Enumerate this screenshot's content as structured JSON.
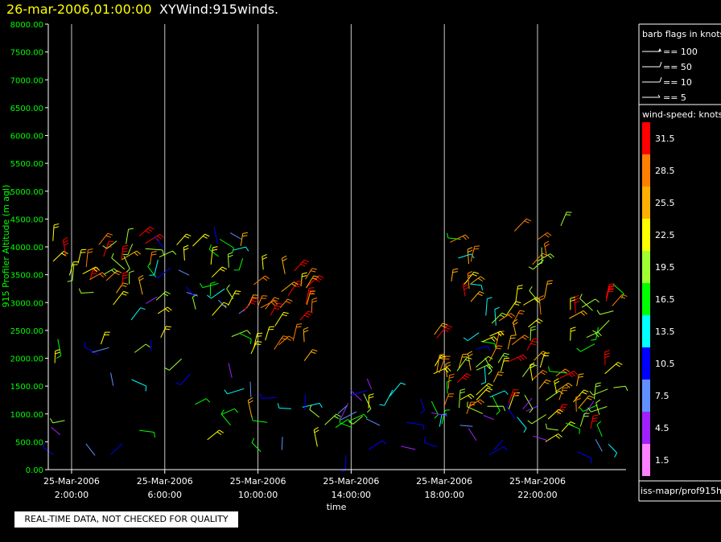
{
  "header": {
    "timestamp": "26-mar-2006,01:00:00",
    "title": "XYWind:915winds."
  },
  "notice": "REAL-TIME DATA, NOT CHECKED FOR QUALITY",
  "footer_path": "iss-mapr/prof915h",
  "chart_data": {
    "type": "scatter",
    "subtype": "wind-barb time-height plot",
    "xlabel": "time",
    "ylabel": "915 Profiler Altitude (m agl)",
    "ylim": [
      0,
      8000
    ],
    "yticks": [
      "0.00",
      "500.00",
      "1000.00",
      "1500.00",
      "2000.00",
      "2500.00",
      "3000.00",
      "3500.00",
      "4000.00",
      "4500.00",
      "5000.00",
      "5500.00",
      "6000.00",
      "6500.00",
      "7000.00",
      "7500.00",
      "8000.00"
    ],
    "x_range_hours": [
      1,
      25.8
    ],
    "xticks": [
      {
        "hour": 2,
        "date": "25-Mar-2006",
        "time": "2:00:00"
      },
      {
        "hour": 6,
        "date": "25-Mar-2006",
        "time": "6:00:00"
      },
      {
        "hour": 10,
        "date": "25-Mar-2006",
        "time": "10:00:00"
      },
      {
        "hour": 14,
        "date": "25-Mar-2006",
        "time": "14:00:00"
      },
      {
        "hour": 18,
        "date": "25-Mar-2006",
        "time": "18:00:00"
      },
      {
        "hour": 22,
        "date": "25-Mar-2006",
        "time": "22:00:00"
      }
    ],
    "grid": "vertical",
    "barb_legend": {
      "title": "barb flags in knots",
      "items": [
        "== 100",
        "== 50",
        "== 10",
        "== 5"
      ]
    },
    "speed_legend": {
      "title": "wind-speed: knots",
      "bins": [
        {
          "label": "31.5",
          "color": "#ff0000"
        },
        {
          "label": "28.5",
          "color": "#ff8000"
        },
        {
          "label": "25.5",
          "color": "#ffb000"
        },
        {
          "label": "22.5",
          "color": "#ffff00"
        },
        {
          "label": "19.5",
          "color": "#a0ff30"
        },
        {
          "label": "16.5",
          "color": "#00ff00"
        },
        {
          "label": "13.5",
          "color": "#00ffff"
        },
        {
          "label": "10.5",
          "color": "#0000ff"
        },
        {
          "label": "7.5",
          "color": "#6090ff"
        },
        {
          "label": "4.5",
          "color": "#a020ff"
        },
        {
          "label": "1.5",
          "color": "#ff80ff"
        }
      ]
    },
    "clusters": [
      {
        "hour_min": 1.2,
        "hour_max": 5.5,
        "alt_min": 3000,
        "alt_max": 4200,
        "speed_min": 18,
        "speed_max": 33
      },
      {
        "hour_min": 1.2,
        "hour_max": 9.5,
        "alt_min": 250,
        "alt_max": 3000,
        "speed_min": 2,
        "speed_max": 24
      },
      {
        "hour_min": 5.5,
        "hour_max": 9.5,
        "alt_min": 2800,
        "alt_max": 4200,
        "speed_min": 6,
        "speed_max": 25
      },
      {
        "hour_min": 9.3,
        "hour_max": 12.5,
        "alt_min": 1800,
        "alt_max": 3600,
        "speed_min": 22,
        "speed_max": 33
      },
      {
        "hour_min": 9.5,
        "hour_max": 16.5,
        "alt_min": 250,
        "alt_max": 1500,
        "speed_min": 4,
        "speed_max": 26
      },
      {
        "hour_min": 16.5,
        "hour_max": 25.3,
        "alt_min": 250,
        "alt_max": 1600,
        "speed_min": 4,
        "speed_max": 22
      },
      {
        "hour_min": 17.5,
        "hour_max": 19.3,
        "alt_min": 1000,
        "alt_max": 4200,
        "speed_min": 12,
        "speed_max": 33
      },
      {
        "hour_min": 19.3,
        "hour_max": 21.0,
        "alt_min": 900,
        "alt_max": 2800,
        "speed_min": 10,
        "speed_max": 33
      },
      {
        "hour_min": 21.0,
        "hour_max": 23.0,
        "alt_min": 900,
        "alt_max": 4400,
        "speed_min": 18,
        "speed_max": 33
      },
      {
        "hour_min": 23.0,
        "hour_max": 25.3,
        "alt_min": 500,
        "alt_max": 3400,
        "speed_min": 16,
        "speed_max": 33
      }
    ]
  }
}
